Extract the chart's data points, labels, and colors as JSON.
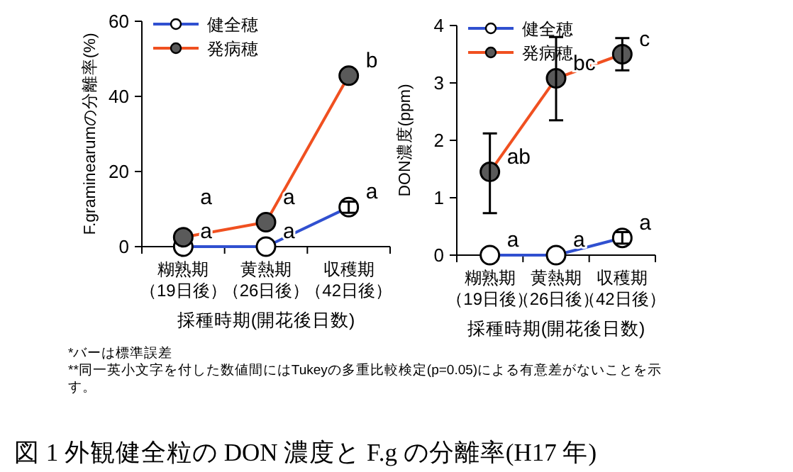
{
  "chart_data": [
    {
      "type": "line",
      "ylabel": "F.graminearumの分離率(%)",
      "xlabel": "採種時期(開花後日数)",
      "categories": [
        "糊熟期（19日後）",
        "黄熱期（26日後）",
        "収穫期（42日後）"
      ],
      "ylim": [
        0,
        60
      ],
      "yticks": [
        0,
        20,
        40,
        60
      ],
      "grid": false,
      "legend": "top left",
      "marker": "circle",
      "series": [
        {
          "name": "健全穂",
          "color": "#3050d0",
          "values": [
            0,
            0,
            10.5
          ],
          "errors": [
            null,
            null,
            1.5
          ]
        },
        {
          "name": "発病穂",
          "color": "#f05020",
          "values": [
            2.5,
            6.5,
            45.5
          ]
        }
      ],
      "annotations": [
        {
          "text": "a",
          "x": "糊熟期（19日後）",
          "y": 0
        },
        {
          "text": "a",
          "x": "黄熱期（26日後）",
          "y": 0
        },
        {
          "text": "a",
          "x": "収穫期（42日後）",
          "y": 10.5
        },
        {
          "text": "a",
          "x": "糊熟期（19日後）",
          "y": 2.5
        },
        {
          "text": "a",
          "x": "黄熱期（26日後）",
          "y": 6.5
        },
        {
          "text": "b",
          "x": "収穫期（42日後）",
          "y": 45.5
        },
        "*バーは標準誤差",
        "**同一英小文字を付した数値間にはTukeyの多重比較検定(p=0.05)による有意差がないことを示す。",
        "図 1 外観健全粒の DON 濃度と F.g の分離率(H17 年)"
      ]
    },
    {
      "type": "line",
      "ylabel": "DON濃度(ppm)",
      "xlabel": "採種時期(開花後日数)",
      "categories": [
        "糊熟期（19日後）",
        "黄熱期（26日後）",
        "収穫期（42日後）"
      ],
      "ylim": [
        0,
        4
      ],
      "yticks": [
        0,
        1,
        2,
        3,
        4
      ],
      "grid": false,
      "legend": "top left",
      "marker": "circle",
      "series": [
        {
          "name": "健全穂",
          "color": "#3050d0",
          "values": [
            0,
            0,
            0.3
          ],
          "errors": [
            null,
            null,
            0.1
          ]
        },
        {
          "name": "発病穂",
          "color": "#f05020",
          "values": [
            1.45,
            3.08,
            3.5
          ],
          "errors": [
            [
              0.73,
              2.12
            ],
            [
              2.35,
              3.8
            ],
            [
              3.22,
              3.78
            ]
          ]
        }
      ],
      "annotations": [
        {
          "text": "a",
          "x": "糊熟期（19日後）",
          "y": 0
        },
        {
          "text": "a",
          "x": "黄熱期（26日後）",
          "y": 0
        },
        {
          "text": "a",
          "x": "収穫期（42日後）",
          "y": 0.3
        },
        {
          "text": "ab",
          "x": "糊熟期（19日後）",
          "y": 1.45
        },
        {
          "text": "bc",
          "x": "黄熱期（26日後）",
          "y": 3.08
        },
        {
          "text": "c",
          "x": "収穫期（42日後）",
          "y": 3.5
        }
      ]
    }
  ]
}
